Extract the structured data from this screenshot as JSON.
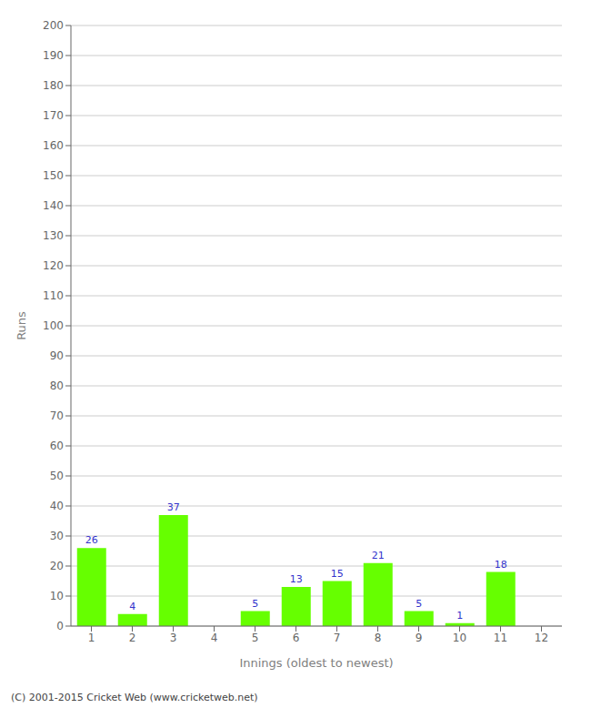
{
  "chart_data": {
    "type": "bar",
    "categories": [
      "1",
      "2",
      "3",
      "4",
      "5",
      "6",
      "7",
      "8",
      "9",
      "10",
      "11",
      "12"
    ],
    "values": [
      26,
      4,
      37,
      0,
      5,
      13,
      15,
      21,
      5,
      1,
      18,
      0
    ],
    "color": "#66ff00",
    "xlabel": "Innings (oldest to newest)",
    "ylabel": "Runs",
    "ylim": [
      0,
      200
    ],
    "yticks": [
      0,
      10,
      20,
      30,
      40,
      50,
      60,
      70,
      80,
      90,
      100,
      110,
      120,
      130,
      140,
      150,
      160,
      170,
      180,
      190,
      200
    ],
    "grid": true,
    "data_labels": true,
    "annotations": [
      "(C) 2001-2015 Cricket Web (www.cricketweb.net)"
    ]
  }
}
